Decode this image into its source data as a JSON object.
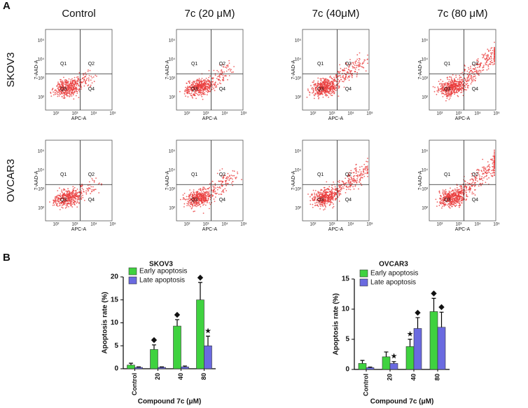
{
  "panel_a": {
    "label": "A",
    "columns": [
      "Control",
      "7c (20 μM)",
      "7c (40μM)",
      "7c (80 μM)"
    ],
    "rows": [
      "SKOV3",
      "OVCAR3"
    ],
    "quadrants": [
      "Q1",
      "Q2",
      "Q3",
      "Q4"
    ],
    "x_axis": "APC-A",
    "y_axis": "7-AAD-A",
    "ticks": [
      "10²",
      "10³",
      "10⁴",
      "10⁵"
    ]
  },
  "panel_b": {
    "label": "B"
  },
  "chart_data": [
    {
      "type": "bar",
      "title": "SKOV3",
      "xlabel": "Compound 7c (μM)",
      "ylabel": "Apoptosis rate (%)",
      "categories": [
        "Control",
        "20",
        "40",
        "80"
      ],
      "series": [
        {
          "name": "Early apoptosis",
          "color": "#3fd23f",
          "values": [
            0.8,
            4.2,
            9.3,
            15
          ],
          "errors": [
            0.4,
            1.0,
            1.4,
            3.8
          ]
        },
        {
          "name": "Late apoptosis",
          "color": "#6a6ae0",
          "values": [
            0.3,
            0.3,
            0.4,
            5
          ],
          "errors": [
            0.1,
            0.1,
            0.2,
            2.1
          ]
        }
      ],
      "ylim": [
        0,
        20
      ],
      "yticks": [
        0,
        5,
        10,
        15,
        20
      ],
      "legend": "upper left",
      "annotations": [
        {
          "series": 0,
          "index": 1,
          "text": "◆"
        },
        {
          "series": 0,
          "index": 2,
          "text": "◆"
        },
        {
          "series": 0,
          "index": 3,
          "text": "◆"
        },
        {
          "series": 1,
          "index": 3,
          "text": "★"
        }
      ]
    },
    {
      "type": "bar",
      "title": "OVCAR3",
      "xlabel": "Compound 7c (μM)",
      "ylabel": "Apoptosis rate (%)",
      "categories": [
        "Control",
        "20",
        "40",
        "80"
      ],
      "series": [
        {
          "name": "Early apoptosis",
          "color": "#3fd23f",
          "values": [
            1.0,
            2.1,
            3.8,
            9.6
          ],
          "errors": [
            0.5,
            0.8,
            1.2,
            2.2
          ]
        },
        {
          "name": "Late apoptosis",
          "color": "#6a6ae0",
          "values": [
            0.3,
            1.0,
            6.8,
            7.0
          ],
          "errors": [
            0.1,
            0.3,
            1.8,
            2.5
          ]
        }
      ],
      "ylim": [
        0,
        15
      ],
      "yticks": [
        0,
        5,
        10,
        15
      ],
      "legend": "upper left",
      "annotations": [
        {
          "series": 1,
          "index": 1,
          "text": "★"
        },
        {
          "series": 0,
          "index": 2,
          "text": "★"
        },
        {
          "series": 1,
          "index": 2,
          "text": "◆"
        },
        {
          "series": 0,
          "index": 3,
          "text": "◆"
        },
        {
          "series": 1,
          "index": 3,
          "text": "◆"
        }
      ]
    }
  ]
}
